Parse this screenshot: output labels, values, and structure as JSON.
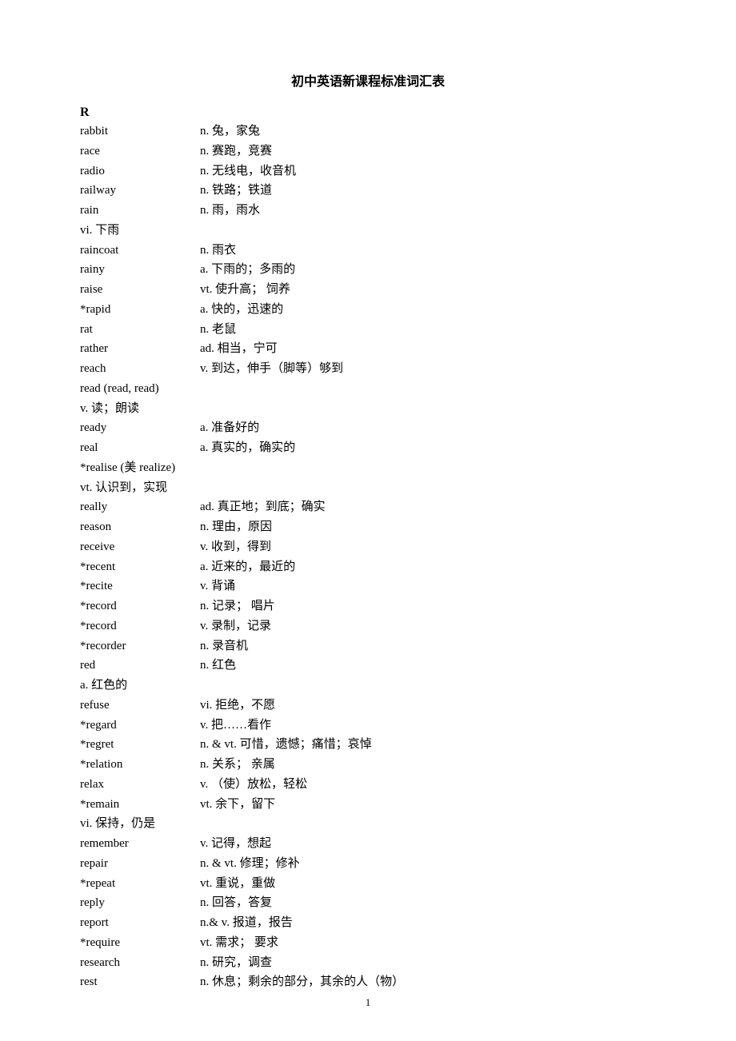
{
  "title": "初中英语新课程标准词汇表",
  "section_letter": "R",
  "page_number": "1",
  "entries": [
    {
      "word": "rabbit",
      "def": "n.  兔，家兔",
      "has_cont": false
    },
    {
      "word": "race",
      "def": " n.  赛跑，竞赛",
      "has_cont": false
    },
    {
      "word": "radio",
      "def": " n.  无线电，收音机",
      "has_cont": false
    },
    {
      "word": "railway",
      "def": " n.  铁路；铁道",
      "has_cont": false
    },
    {
      "word": "rain",
      "def": " n.  雨，雨水",
      "has_cont": true,
      "cont": "vi.  下雨"
    },
    {
      "word": "raincoat",
      "def": " n.  雨衣",
      "has_cont": false
    },
    {
      "word": "rainy",
      "def": " a.  下雨的；多雨的",
      "has_cont": false
    },
    {
      "word": "raise",
      "def": " vt.  使升高；   饲养",
      "has_cont": false
    },
    {
      "word": "*rapid",
      "def": " a.  快的，迅速的",
      "has_cont": false
    },
    {
      "word": "rat",
      "def": " n.  老鼠",
      "has_cont": false
    },
    {
      "word": "rather",
      "def": " ad.  相当，宁可",
      "has_cont": false
    },
    {
      "word": "reach",
      "def": "  v.  到达，伸手（脚等）够到",
      "has_cont": false
    },
    {
      "word": "read (read, read)",
      "def": "",
      "has_cont": true,
      "cont": "v.  读；朗读",
      "word_full_width": true
    },
    {
      "word": "ready",
      "def": "  a.  准备好的",
      "has_cont": false
    },
    {
      "word": "real",
      "def": "  a.  真实的，确实的",
      "has_cont": false
    },
    {
      "word": "*realise (美 realize)",
      "def": "",
      "has_cont": true,
      "cont": "vt.  认识到，实现",
      "word_full_width": true
    },
    {
      "word": "really",
      "def": " ad.  真正地；到底；确实",
      "has_cont": false
    },
    {
      "word": "reason",
      "def": "  n.  理由，原因",
      "has_cont": false
    },
    {
      "word": "receive",
      "def": "  v.  收到，得到",
      "has_cont": false
    },
    {
      "word": "*recent",
      "def": "  a.  近来的，最近的",
      "has_cont": false
    },
    {
      "word": "*recite",
      "def": "  v.  背诵",
      "has_cont": false
    },
    {
      "word": "*record",
      "def": "  n.  记录；   唱片",
      "has_cont": false
    },
    {
      "word": "*record",
      "def": "  v.  录制，记录",
      "has_cont": false
    },
    {
      "word": "*recorder",
      "def": " n.  录音机",
      "has_cont": false
    },
    {
      "word": "red",
      "def": "  n.  红色",
      "has_cont": true,
      "cont": "a.  红色的"
    },
    {
      "word": "refuse",
      "def": "  vi.  拒绝，不愿",
      "has_cont": false
    },
    {
      "word": "*regard",
      "def": "   v.  把……看作",
      "has_cont": false
    },
    {
      "word": "*regret",
      "def": "  n. & vt.  可惜，遗憾；痛惜；哀悼",
      "has_cont": false
    },
    {
      "word": "*relation",
      "def": " n.  关系；   亲属",
      "has_cont": false
    },
    {
      "word": "relax",
      "def": "  v. （使）放松，轻松",
      "has_cont": false
    },
    {
      "word": "*remain",
      "def": "   vt.  余下，留下",
      "has_cont": true,
      "cont": "vi.  保持，仍是"
    },
    {
      "word": "remember",
      "def": "    v.  记得，想起",
      "has_cont": false
    },
    {
      "word": "repair",
      "def": "  n. & vt.  修理；修补",
      "has_cont": false
    },
    {
      "word": "*repeat",
      "def": "  vt.  重说，重做",
      "has_cont": false
    },
    {
      "word": "reply",
      "def": "  n.  回答，答复",
      "has_cont": false
    },
    {
      "word": "report",
      "def": "  n.& v.  报道，报告",
      "has_cont": false
    },
    {
      "word": "*require",
      "def": "  vt.  需求；   要求",
      "has_cont": false
    },
    {
      "word": "research",
      "def": " n.  研究，调查",
      "has_cont": false
    },
    {
      "word": "rest",
      "def": "  n.  休息；剩余的部分，其余的人（物）",
      "has_cont": false
    }
  ]
}
